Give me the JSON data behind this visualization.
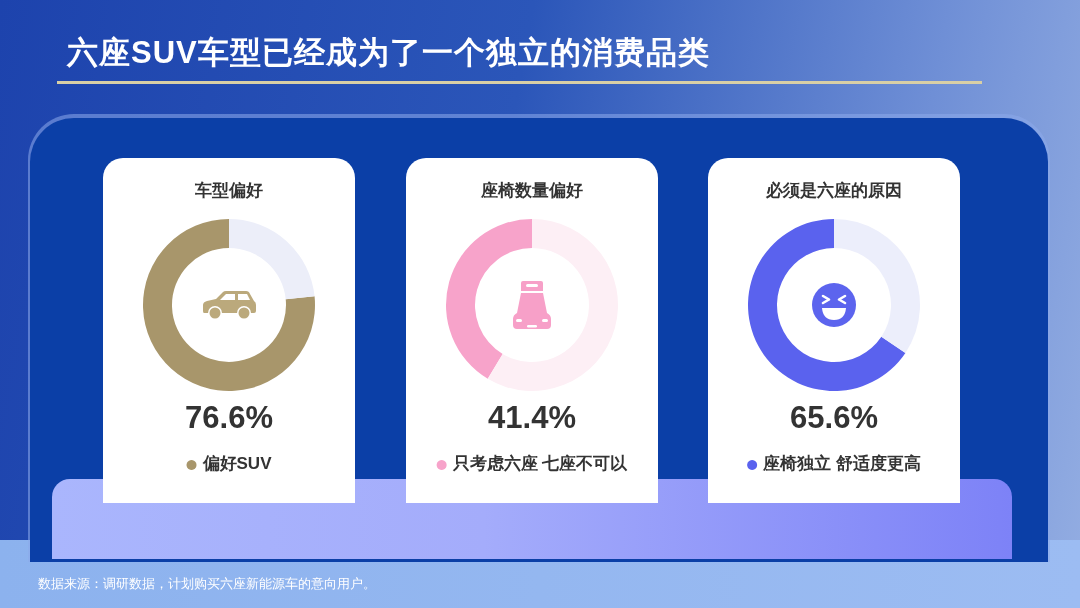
{
  "chart_data": [
    {
      "type": "other",
      "title": "六座SUV车型已经成为了一个独立的消费品类"
    },
    {
      "type": "donut",
      "title": "车型偏好",
      "categories": [
        "偏好SUV",
        null
      ],
      "values": [
        76.6,
        23.4
      ],
      "colors": [
        "#a8966b",
        "#eceef9"
      ],
      "value_labels": [
        "76.6%",
        null
      ]
    },
    {
      "type": "donut",
      "title": "座椅数量偏好",
      "categories": [
        "只考虑六座 七座不可以",
        null
      ],
      "values": [
        41.4,
        58.6
      ],
      "colors": [
        "#f7a3ca",
        "#fdeff5"
      ],
      "value_labels": [
        "41.4%",
        null
      ]
    },
    {
      "type": "donut",
      "title": "必须是六座的原因",
      "categories": [
        "座椅独立 舒适度更高",
        null
      ],
      "values": [
        65.6,
        34.4
      ],
      "colors": [
        "#5a62ee",
        "#eceefb"
      ],
      "value_labels": [
        "65.6%",
        null
      ]
    },
    {
      "type": "other",
      "annotations": [
        "数据来源：调研数据，计划购买六座新能源车的意向用户。"
      ]
    }
  ]
}
